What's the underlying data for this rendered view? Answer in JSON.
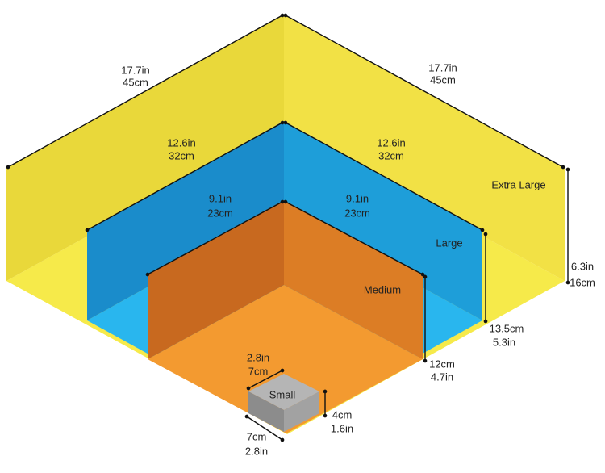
{
  "boxes": [
    {
      "name": "Extra Large",
      "length_left": [
        "17.7in",
        "45cm"
      ],
      "length_right": [
        "17.7in",
        "45cm"
      ],
      "height": [
        "6.3in",
        "16cm"
      ]
    },
    {
      "name": "Large",
      "length_left": [
        "12.6in",
        "32cm"
      ],
      "length_right": [
        "12.6in",
        "32cm"
      ],
      "height": [
        "13.5cm",
        "5.3in"
      ]
    },
    {
      "name": "Medium",
      "length_left": [
        "9.1in",
        "23cm"
      ],
      "length_right": [
        "9.1in",
        "23cm"
      ],
      "height": [
        "12cm",
        "4.7in"
      ]
    },
    {
      "name": "Small",
      "length_top": [
        "2.8in",
        "7cm"
      ],
      "length_bottom": [
        "7cm",
        "2.8in"
      ],
      "height": [
        "4cm",
        "1.6in"
      ]
    }
  ]
}
